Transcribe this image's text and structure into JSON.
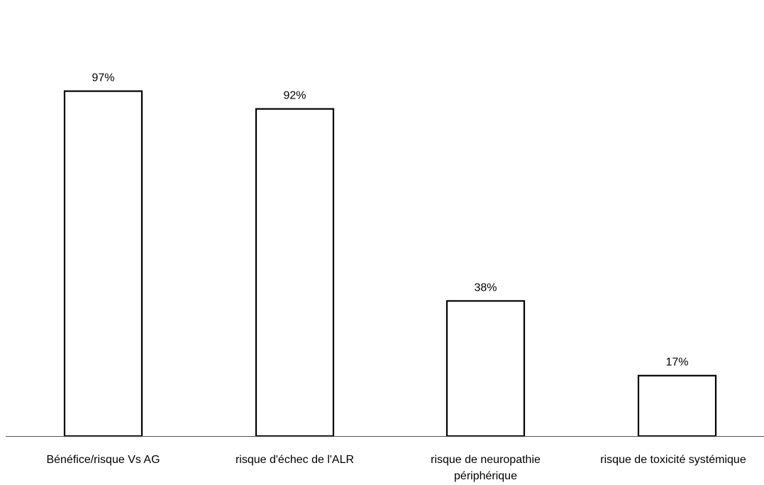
{
  "chart_data": {
    "type": "bar",
    "title": "",
    "xlabel": "",
    "ylabel": "",
    "ylim": [
      0,
      100
    ],
    "grid": false,
    "legend": "none",
    "unit": "%",
    "categories": [
      [
        "Bénéfice/risque Vs AG"
      ],
      [
        "risque d'échec de l'ALR"
      ],
      [
        "risque de neuropathie",
        "périphérique"
      ],
      [
        "risque de toxicité systémique"
      ]
    ],
    "values": [
      97,
      92,
      38,
      17
    ],
    "value_labels": [
      "97%",
      "92%",
      "38%",
      "17%"
    ],
    "colors": {
      "bar_fill": "#ffffff",
      "bar_stroke": "#000000",
      "axis": "#555555"
    }
  }
}
